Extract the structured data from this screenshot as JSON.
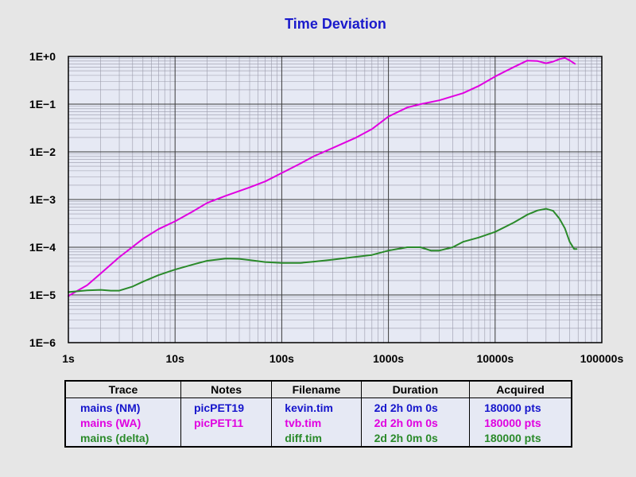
{
  "chart_data": {
    "type": "line",
    "title": "Time Deviation",
    "xscale": "log",
    "yscale": "log",
    "xlim": [
      1,
      100000
    ],
    "ylim": [
      1e-06,
      1
    ],
    "grid": true,
    "x_tick_labels": [
      "1s",
      "10s",
      "100s",
      "1000s",
      "10000s",
      "100000s"
    ],
    "y_tick_labels": [
      "1E−6",
      "1E−5",
      "1E−4",
      "1E−3",
      "1E−2",
      "1E−1",
      "1E+0"
    ],
    "series": [
      {
        "name": "mains (WA)",
        "color": "#e000e0",
        "points": [
          [
            1,
            9.5e-06
          ],
          [
            1.5,
            1.6e-05
          ],
          [
            2,
            2.8e-05
          ],
          [
            3,
            6.2e-05
          ],
          [
            5,
            0.00015
          ],
          [
            7,
            0.00024
          ],
          [
            10,
            0.00035
          ],
          [
            15,
            0.00058
          ],
          [
            20,
            0.00085
          ],
          [
            30,
            0.0012
          ],
          [
            50,
            0.0018
          ],
          [
            70,
            0.0024
          ],
          [
            100,
            0.0036
          ],
          [
            150,
            0.0057
          ],
          [
            200,
            0.0081
          ],
          [
            300,
            0.012
          ],
          [
            500,
            0.02
          ],
          [
            700,
            0.03
          ],
          [
            1000,
            0.055
          ],
          [
            1500,
            0.085
          ],
          [
            2000,
            0.1
          ],
          [
            3000,
            0.12
          ],
          [
            5000,
            0.17
          ],
          [
            7000,
            0.24
          ],
          [
            10000,
            0.38
          ],
          [
            15000,
            0.6
          ],
          [
            20000,
            0.82
          ],
          [
            25000,
            0.8
          ],
          [
            30000,
            0.72
          ],
          [
            35000,
            0.78
          ],
          [
            40000,
            0.88
          ],
          [
            45000,
            0.93
          ],
          [
            50000,
            0.83
          ],
          [
            56000,
            0.7
          ]
        ]
      },
      {
        "name": "mains (delta)",
        "color": "#2a8a2a",
        "points": [
          [
            1,
            1.15e-05
          ],
          [
            1.5,
            1.25e-05
          ],
          [
            2,
            1.28e-05
          ],
          [
            2.5,
            1.23e-05
          ],
          [
            3,
            1.23e-05
          ],
          [
            4,
            1.5e-05
          ],
          [
            5,
            1.9e-05
          ],
          [
            7,
            2.6e-05
          ],
          [
            10,
            3.4e-05
          ],
          [
            15,
            4.4e-05
          ],
          [
            20,
            5.2e-05
          ],
          [
            30,
            5.8e-05
          ],
          [
            40,
            5.7e-05
          ],
          [
            50,
            5.4e-05
          ],
          [
            70,
            4.9e-05
          ],
          [
            100,
            4.7e-05
          ],
          [
            150,
            4.7e-05
          ],
          [
            200,
            5e-05
          ],
          [
            300,
            5.5e-05
          ],
          [
            500,
            6.3e-05
          ],
          [
            700,
            6.9e-05
          ],
          [
            1000,
            8.5e-05
          ],
          [
            1500,
            0.0001
          ],
          [
            2000,
            0.0001
          ],
          [
            2500,
            8.5e-05
          ],
          [
            3000,
            8.5e-05
          ],
          [
            4000,
            0.0001
          ],
          [
            5000,
            0.00013
          ],
          [
            7000,
            0.00016
          ],
          [
            10000,
            0.00021
          ],
          [
            15000,
            0.00033
          ],
          [
            20000,
            0.00048
          ],
          [
            25000,
            0.00059
          ],
          [
            30000,
            0.00064
          ],
          [
            35000,
            0.00058
          ],
          [
            40000,
            0.0004
          ],
          [
            45000,
            0.00025
          ],
          [
            50000,
            0.00013
          ],
          [
            55000,
            9.2e-05
          ],
          [
            58000,
            9.2e-05
          ]
        ]
      }
    ]
  },
  "legend_table": {
    "headers": [
      "Trace",
      "Notes",
      "Filename",
      "Duration",
      "Acquired"
    ],
    "rows": [
      {
        "color": "#1515cc",
        "trace": "mains (NM)",
        "notes": "picPET19",
        "filename": "kevin.tim",
        "duration": "2d 2h 0m 0s",
        "acquired": "180000 pts"
      },
      {
        "color": "#e000e0",
        "trace": "mains (WA)",
        "notes": "picPET11",
        "filename": "tvb.tim",
        "duration": "2d 2h 0m 0s",
        "acquired": "180000 pts"
      },
      {
        "color": "#2a8a2a",
        "trace": "mains (delta)",
        "notes": "",
        "filename": "diff.tim",
        "duration": "2d 2h 0m 0s",
        "acquired": "180000 pts"
      }
    ]
  },
  "colors": {
    "title": "#1a1acc",
    "plot_bg": "#e6e9f4",
    "page_bg": "#e6e6e6",
    "minor_grid": "#9a9aaa",
    "major_grid": "#3a3a3a"
  }
}
